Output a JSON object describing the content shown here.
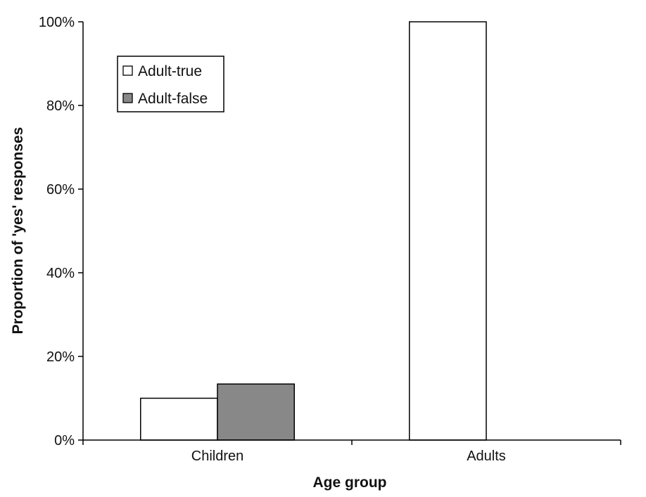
{
  "chart_data": {
    "type": "bar",
    "title": "",
    "xlabel": "Age group",
    "ylabel": "Proportion of 'yes' responses",
    "categories": [
      "Children",
      "Adults"
    ],
    "series": [
      {
        "name": "Adult-true",
        "values": [
          10,
          100
        ],
        "color": "#ffffff"
      },
      {
        "name": "Adult-false",
        "values": [
          13.4,
          0
        ],
        "color": "#888888"
      }
    ],
    "ylim": [
      0,
      100
    ],
    "yticks": [
      0,
      20,
      40,
      60,
      80,
      100
    ],
    "ytick_labels": [
      "0%",
      "20%",
      "40%",
      "60%",
      "80%",
      "100%"
    ],
    "grid": false,
    "legend_position": "top-left"
  }
}
